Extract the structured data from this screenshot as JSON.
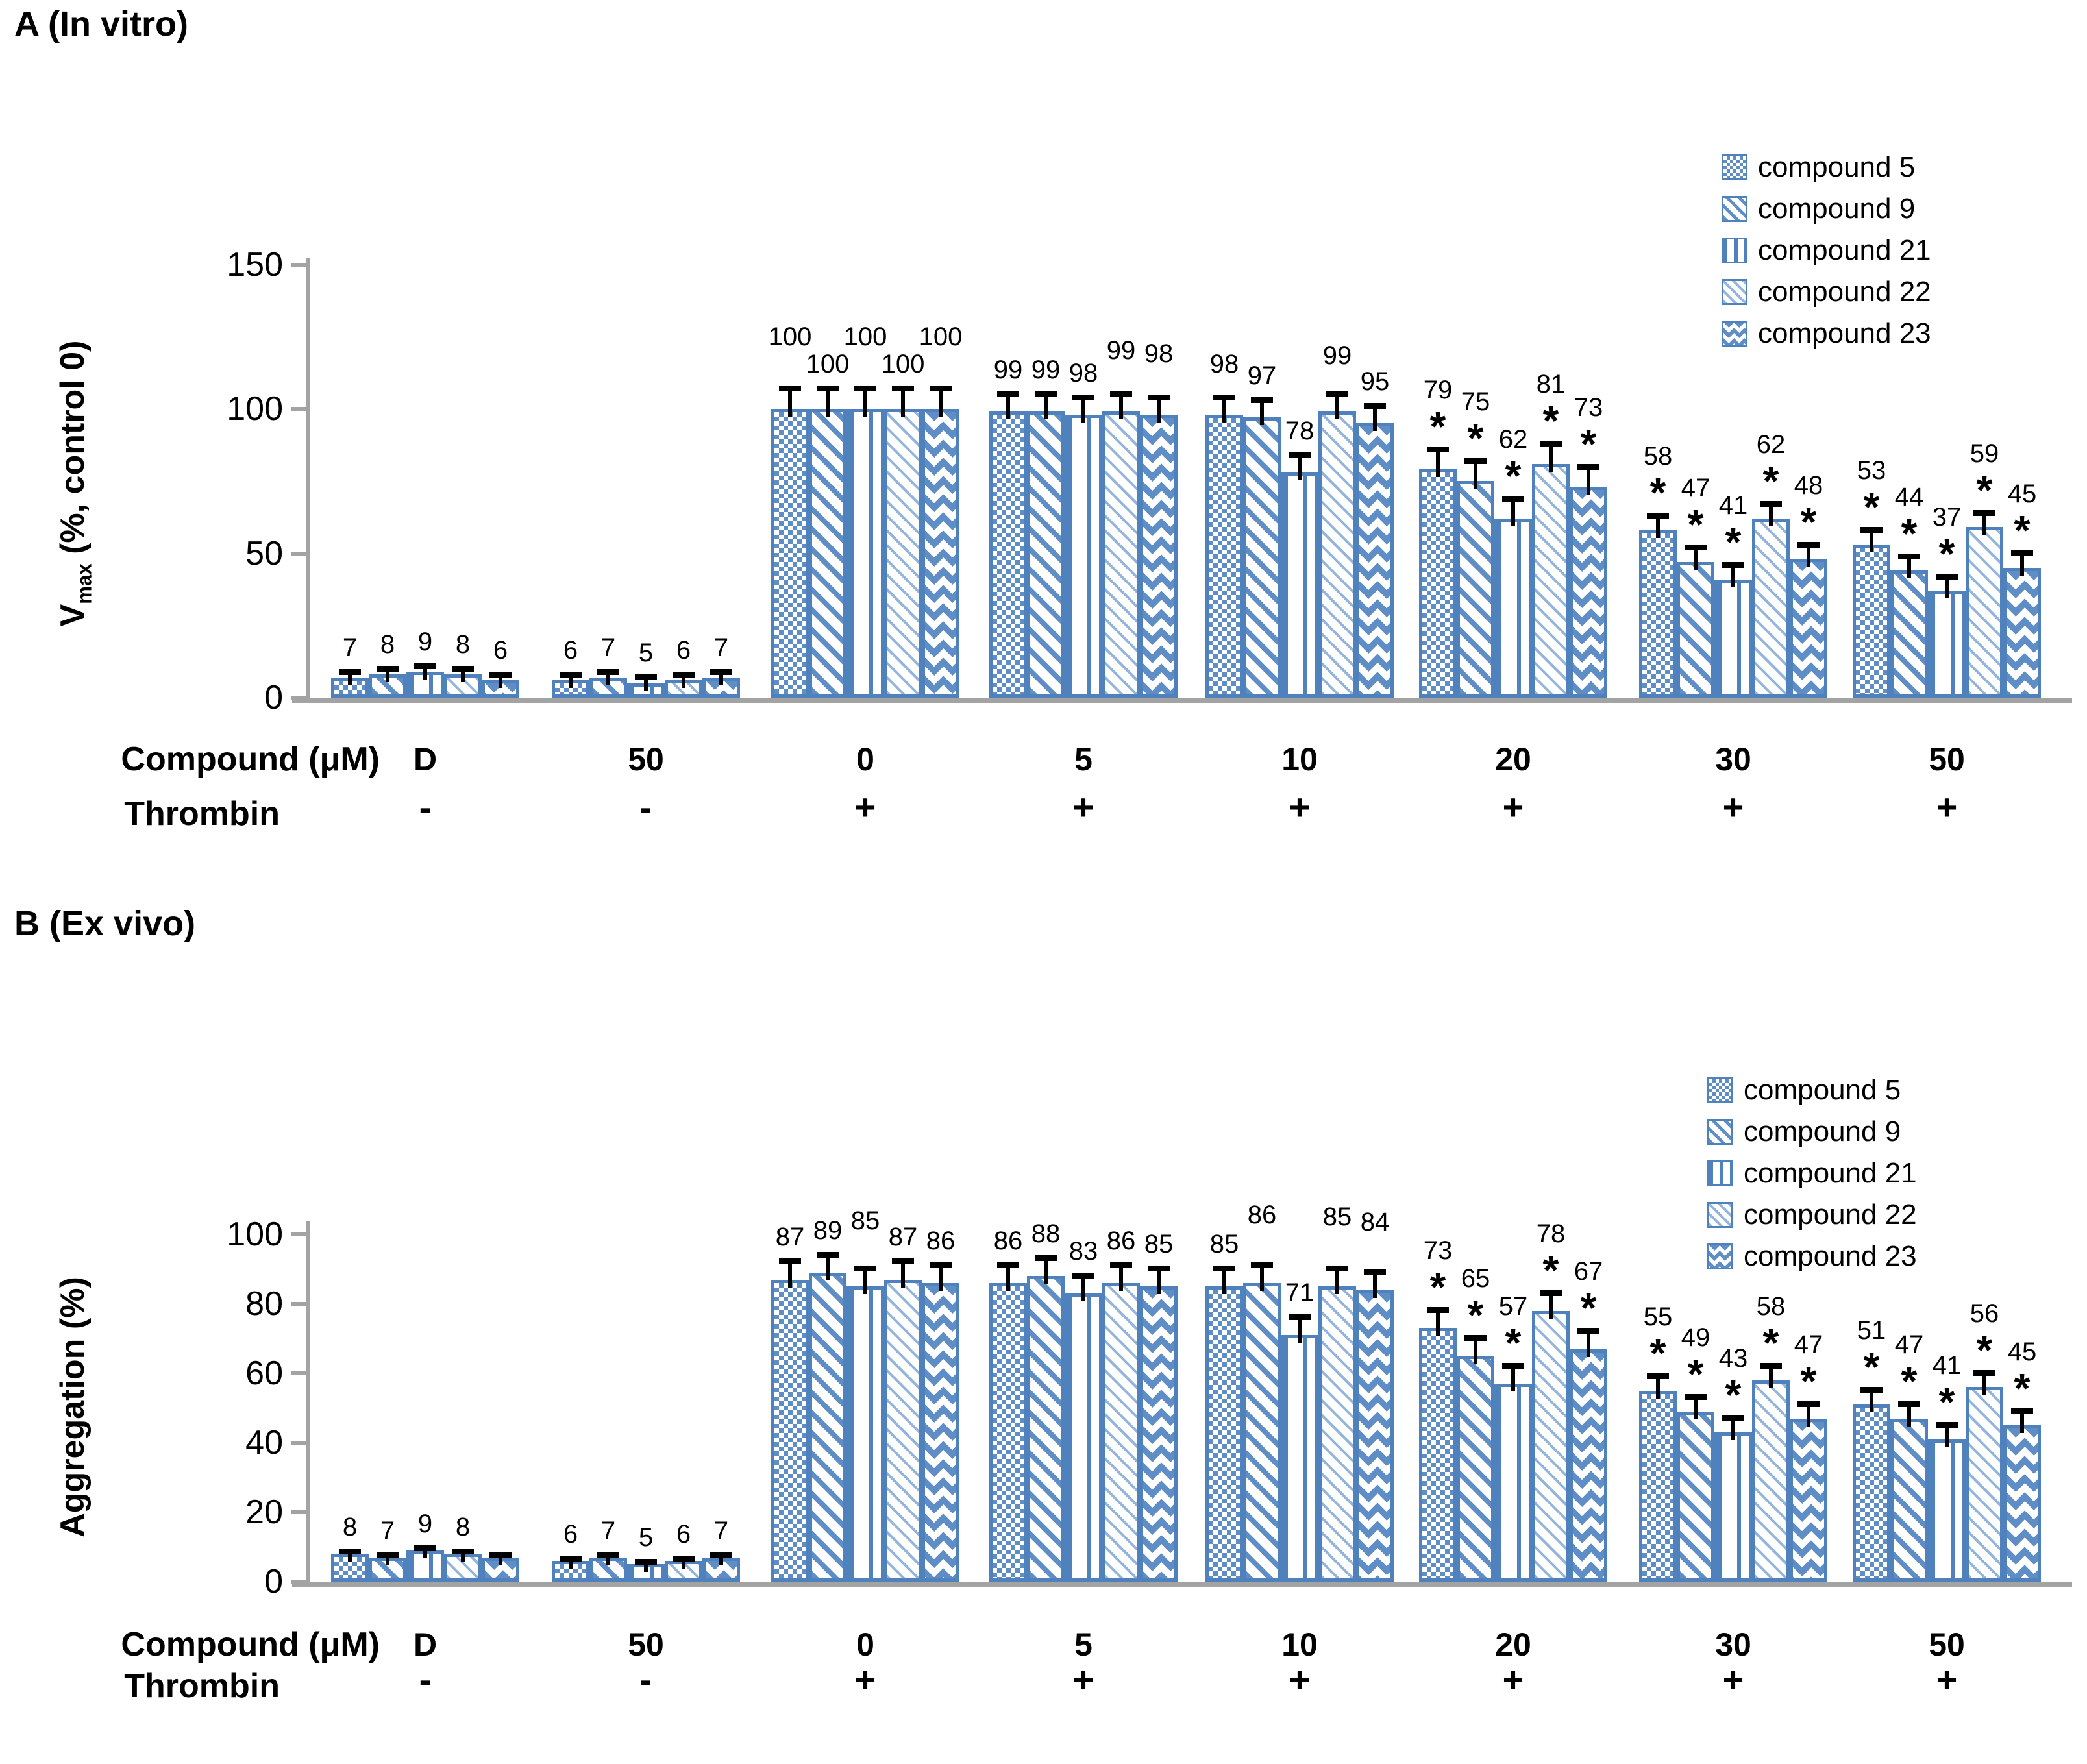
{
  "colors": {
    "bar_border": "#4f81bd",
    "pattern": "#5f8dc6",
    "pattern_light": "#93b4dc",
    "axis": "#a3a3a3",
    "error_bar": "#000000",
    "text": "#000000"
  },
  "legend": {
    "items": [
      {
        "label": "compound 5",
        "pattern": "p-checker"
      },
      {
        "label": "compound 9",
        "pattern": "p-diag"
      },
      {
        "label": "compound 21",
        "pattern": "p-vert"
      },
      {
        "label": "compound 22",
        "pattern": "p-dash"
      },
      {
        "label": "compound 23",
        "pattern": "p-zig"
      }
    ]
  },
  "chart_data": [
    {
      "type": "bar",
      "title": "A (In vitro)",
      "ylabel": "Vmax (%, control 0)",
      "ylabel_parts": {
        "base": "V",
        "sub": "max",
        "rest": " (%, control 0)"
      },
      "yticks": [
        0,
        50,
        100,
        150
      ],
      "ylim": [
        0,
        150
      ],
      "grid": false,
      "legend_position": "upper right",
      "xlabel_row1": "Compound (μM)",
      "xlabel_row2": "Thrombin",
      "categories": [
        "D",
        "50",
        "0",
        "5",
        "10",
        "20",
        "30",
        "50"
      ],
      "thrombin_signs": [
        "-",
        "-",
        "+",
        "+",
        "+",
        "+",
        "+",
        "+"
      ],
      "series": [
        {
          "name": "compound 5",
          "values": [
            7,
            6,
            100,
            99,
            98,
            79,
            58,
            53
          ]
        },
        {
          "name": "compound 9",
          "values": [
            8,
            7,
            100,
            99,
            97,
            75,
            47,
            44
          ]
        },
        {
          "name": "compound 21",
          "values": [
            9,
            5,
            100,
            98,
            78,
            62,
            41,
            37
          ]
        },
        {
          "name": "compound 22",
          "values": [
            8,
            6,
            100,
            99,
            99,
            81,
            62,
            59
          ]
        },
        {
          "name": "compound 23",
          "values": [
            6,
            7,
            100,
            98,
            95,
            73,
            48,
            45
          ]
        }
      ],
      "value_labels": [
        [
          "7",
          "8",
          "9",
          "8",
          "6"
        ],
        [
          "6",
          "7",
          "5",
          "6",
          "7"
        ],
        [
          "100",
          "100",
          "100",
          "100",
          "100"
        ],
        [
          "99",
          "99",
          "98",
          "99",
          "98"
        ],
        [
          "98",
          "97",
          "78",
          "99",
          "95"
        ],
        [
          "79",
          "75",
          "62",
          "81",
          "73"
        ],
        [
          "58",
          "47",
          "41",
          "62",
          "48"
        ],
        [
          "53",
          "44",
          "37",
          "59",
          "45"
        ]
      ],
      "significant": [
        false,
        false,
        false,
        false,
        false,
        true,
        true,
        true
      ],
      "error_units": [
        3,
        3,
        8,
        7,
        7,
        8,
        6,
        6
      ],
      "label_raise": [
        [
          0,
          0,
          0,
          0,
          0
        ],
        [
          0,
          0,
          0,
          0,
          0
        ],
        [
          42,
          0,
          42,
          0,
          42
        ],
        [
          0,
          0,
          0,
          30,
          30
        ],
        [
          14,
          0,
          0,
          22,
          0
        ],
        [
          0,
          0,
          0,
          0,
          0
        ],
        [
          0,
          0,
          0,
          0,
          0
        ],
        [
          0,
          0,
          0,
          0,
          0
        ]
      ]
    },
    {
      "type": "bar",
      "title": "B (Ex vivo)",
      "ylabel": "Aggregation (%)",
      "ylabel_parts": {
        "base": "Aggregation (%)",
        "sub": "",
        "rest": ""
      },
      "yticks": [
        0,
        20,
        40,
        60,
        80,
        100
      ],
      "ylim": [
        0,
        100
      ],
      "grid": false,
      "legend_position": "upper right",
      "xlabel_row1": "Compound (μM)",
      "xlabel_row2": "Thrombin",
      "categories": [
        "D",
        "50",
        "0",
        "5",
        "10",
        "20",
        "30",
        "50"
      ],
      "thrombin_signs": [
        "-",
        "-",
        "+",
        "+",
        "+",
        "+",
        "+",
        "+"
      ],
      "series": [
        {
          "name": "compound 5",
          "values": [
            8,
            6,
            87,
            86,
            85,
            73,
            55,
            51
          ]
        },
        {
          "name": "compound 9",
          "values": [
            7,
            7,
            89,
            88,
            86,
            65,
            49,
            47
          ]
        },
        {
          "name": "compound 21",
          "values": [
            9,
            5,
            85,
            83,
            71,
            57,
            43,
            41
          ]
        },
        {
          "name": "compound 22",
          "values": [
            8,
            6,
            87,
            86,
            85,
            78,
            58,
            56
          ]
        },
        {
          "name": "compound 23",
          "values": [
            7,
            7,
            86,
            85,
            84,
            67,
            47,
            45
          ]
        }
      ],
      "value_labels": [
        [
          "8",
          "7",
          "9",
          "8",
          ""
        ],
        [
          "6",
          "7",
          "5",
          "6",
          "7"
        ],
        [
          "87",
          "89",
          "85",
          "87",
          "86"
        ],
        [
          "86",
          "88",
          "83",
          "86",
          "85"
        ],
        [
          "85",
          "86",
          "71",
          "85",
          "84"
        ],
        [
          "73",
          "65",
          "57",
          "78",
          "67"
        ],
        [
          "55",
          "49",
          "43",
          "58",
          "47"
        ],
        [
          "51",
          "47",
          "41",
          "56",
          "45"
        ]
      ],
      "significant": [
        false,
        false,
        false,
        false,
        false,
        true,
        true,
        true
      ],
      "error_units": [
        1.5,
        1.5,
        6,
        6,
        6,
        6,
        5,
        5
      ],
      "label_raise": [
        [
          0,
          0,
          0,
          0,
          0
        ],
        [
          0,
          0,
          0,
          0,
          0
        ],
        [
          0,
          0,
          36,
          0,
          0
        ],
        [
          0,
          0,
          0,
          0,
          0
        ],
        [
          0,
          40,
          0,
          42,
          40
        ],
        [
          0,
          0,
          0,
          0,
          0
        ],
        [
          0,
          0,
          0,
          0,
          0
        ],
        [
          0,
          0,
          0,
          0,
          0
        ]
      ]
    }
  ]
}
